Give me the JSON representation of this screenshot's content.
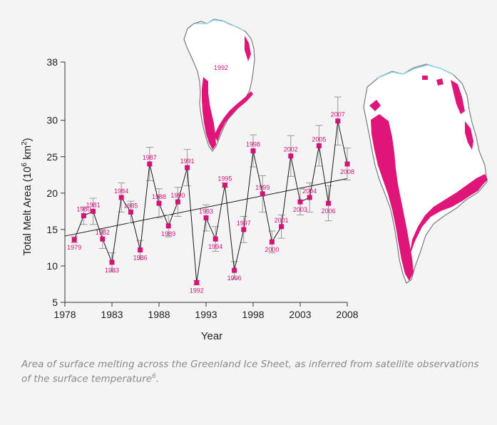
{
  "chart_data": {
    "type": "line",
    "xlabel": "Year",
    "ylabel": "Total Melt Area (10",
    "ylabel_sup": "6",
    "ylabel_unit": " km",
    "ylabel_sup2": "2",
    "ylabel_close": ")",
    "xlim": [
      1978,
      2008
    ],
    "ylim": [
      5,
      38
    ],
    "x_ticks": [
      1978,
      1983,
      1988,
      1993,
      1998,
      2003,
      2008
    ],
    "y_ticks": [
      5,
      10,
      15,
      20,
      25,
      30,
      38
    ],
    "x_tick_labels": [
      "1978",
      "1983",
      "1988",
      "1993",
      "1998",
      "2003",
      "2008"
    ],
    "y_tick_labels": [
      "5",
      "10",
      "15",
      "20",
      "25",
      "30",
      "38"
    ],
    "grid": false,
    "series": [
      {
        "points": [
          {
            "label": "1979",
            "x": 1979,
            "y": 13.6,
            "err": 0.4
          },
          {
            "label": "1980",
            "x": 1980,
            "y": 16.9,
            "err": 1.2
          },
          {
            "label": "1981",
            "x": 1981,
            "y": 17.5,
            "err": 1.8
          },
          {
            "label": "1982",
            "x": 1982,
            "y": 13.7,
            "err": 1.3
          },
          {
            "label": "1983",
            "x": 1983,
            "y": 10.5,
            "err": 1.3
          },
          {
            "label": "1984",
            "x": 1984,
            "y": 19.4,
            "err": 2.0
          },
          {
            "label": "1985",
            "x": 1985,
            "y": 17.4,
            "err": 1.5
          },
          {
            "label": "1986",
            "x": 1986,
            "y": 12.2,
            "err": 1.3
          },
          {
            "label": "1987",
            "x": 1987,
            "y": 24.0,
            "err": 2.3
          },
          {
            "label": "1988",
            "x": 1988,
            "y": 18.6,
            "err": 2.0
          },
          {
            "label": "1989",
            "x": 1989,
            "y": 15.5,
            "err": 1.5
          },
          {
            "label": "1990",
            "x": 1990,
            "y": 18.8,
            "err": 2.0
          },
          {
            "label": "1991",
            "x": 1991,
            "y": 23.5,
            "err": 2.5
          },
          {
            "label": "1992",
            "x": 1992,
            "y": 7.7,
            "err": 0.3
          },
          {
            "label": "1993",
            "x": 1993,
            "y": 16.6,
            "err": 1.8
          },
          {
            "label": "1994",
            "x": 1994,
            "y": 13.7,
            "err": 1.7
          },
          {
            "label": "1995",
            "x": 1995,
            "y": 21.1,
            "err": 0.3
          },
          {
            "label": "1996",
            "x": 1996,
            "y": 9.4,
            "err": 1.2
          },
          {
            "label": "1997",
            "x": 1997,
            "y": 15.0,
            "err": 1.8
          },
          {
            "label": "1998",
            "x": 1998,
            "y": 25.8,
            "err": 2.2
          },
          {
            "label": "1999",
            "x": 1999,
            "y": 19.9,
            "err": 2.5
          },
          {
            "label": "2000",
            "x": 2000,
            "y": 13.3,
            "err": 1.5
          },
          {
            "label": "2001",
            "x": 2001,
            "y": 15.4,
            "err": 1.6
          },
          {
            "label": "2002",
            "x": 2002,
            "y": 25.1,
            "err": 2.8
          },
          {
            "label": "2003",
            "x": 2003,
            "y": 18.8,
            "err": 1.8
          },
          {
            "label": "2004",
            "x": 2004,
            "y": 19.4,
            "err": 2.0
          },
          {
            "label": "2005",
            "x": 2005,
            "y": 26.5,
            "err": 2.8
          },
          {
            "label": "2006",
            "x": 2006,
            "y": 18.6,
            "err": 2.4
          },
          {
            "label": "2007",
            "x": 2007,
            "y": 29.9,
            "err": 3.3
          },
          {
            "label": "2008",
            "x": 2008,
            "y": 24.0,
            "err": 2.2
          }
        ]
      }
    ],
    "trend_line": {
      "x": [
        1978,
        2008
      ],
      "y": [
        14.1,
        22.0
      ]
    },
    "inset_maps": [
      {
        "label": "1992"
      },
      {
        "label": "2007"
      }
    ],
    "colors": {
      "marker": "#d4127a",
      "line": "#1a1a1a",
      "error_bar": "#9a9a9a",
      "melt": "#e0157a",
      "ice": "#ffffff",
      "coast": "#7a7a7a",
      "water": "#8fd0ea"
    }
  },
  "caption": {
    "text": "Area of surface melting across the Greenland Ice Sheet, as inferred from satellite observations of the surface temperature",
    "ref": "6",
    "end": "."
  }
}
